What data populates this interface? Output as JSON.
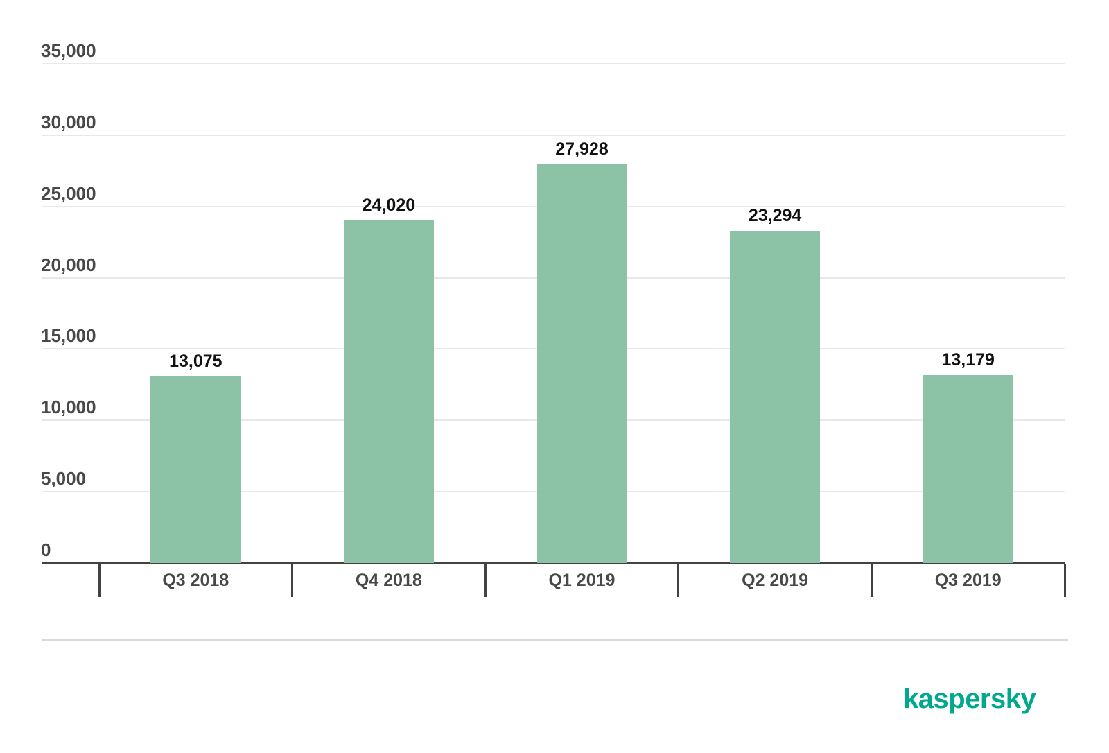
{
  "chart_data": {
    "type": "bar",
    "categories": [
      "Q3 2018",
      "Q4 2018",
      "Q1 2019",
      "Q2 2019",
      "Q3 2019"
    ],
    "values": [
      13075,
      24020,
      27928,
      23294,
      13179
    ],
    "value_labels": [
      "13,075",
      "24,020",
      "27,928",
      "23,294",
      "13,179"
    ],
    "title": "",
    "xlabel": "",
    "ylabel": "",
    "ylim": [
      0,
      35000
    ],
    "ytick_interval": 5000,
    "yticks": [
      {
        "value": 0,
        "label": "0"
      },
      {
        "value": 5000,
        "label": "5,000"
      },
      {
        "value": 10000,
        "label": "10,000"
      },
      {
        "value": 15000,
        "label": "15,000"
      },
      {
        "value": 20000,
        "label": "20,000"
      },
      {
        "value": 25000,
        "label": "25,000"
      },
      {
        "value": 30000,
        "label": "30,000"
      },
      {
        "value": 35000,
        "label": "35,000"
      }
    ],
    "grid": true,
    "legend": false,
    "bar_color": "#8CC3A7"
  },
  "branding": {
    "logo_text": "kaspersky",
    "logo_color": "#00A88E"
  },
  "colors": {
    "background": "#ffffff",
    "gridline": "#e8e8e8",
    "axis": "#424242",
    "axis_label": "#484848",
    "value_label": "#111111",
    "separator": "#d9d9d9"
  }
}
